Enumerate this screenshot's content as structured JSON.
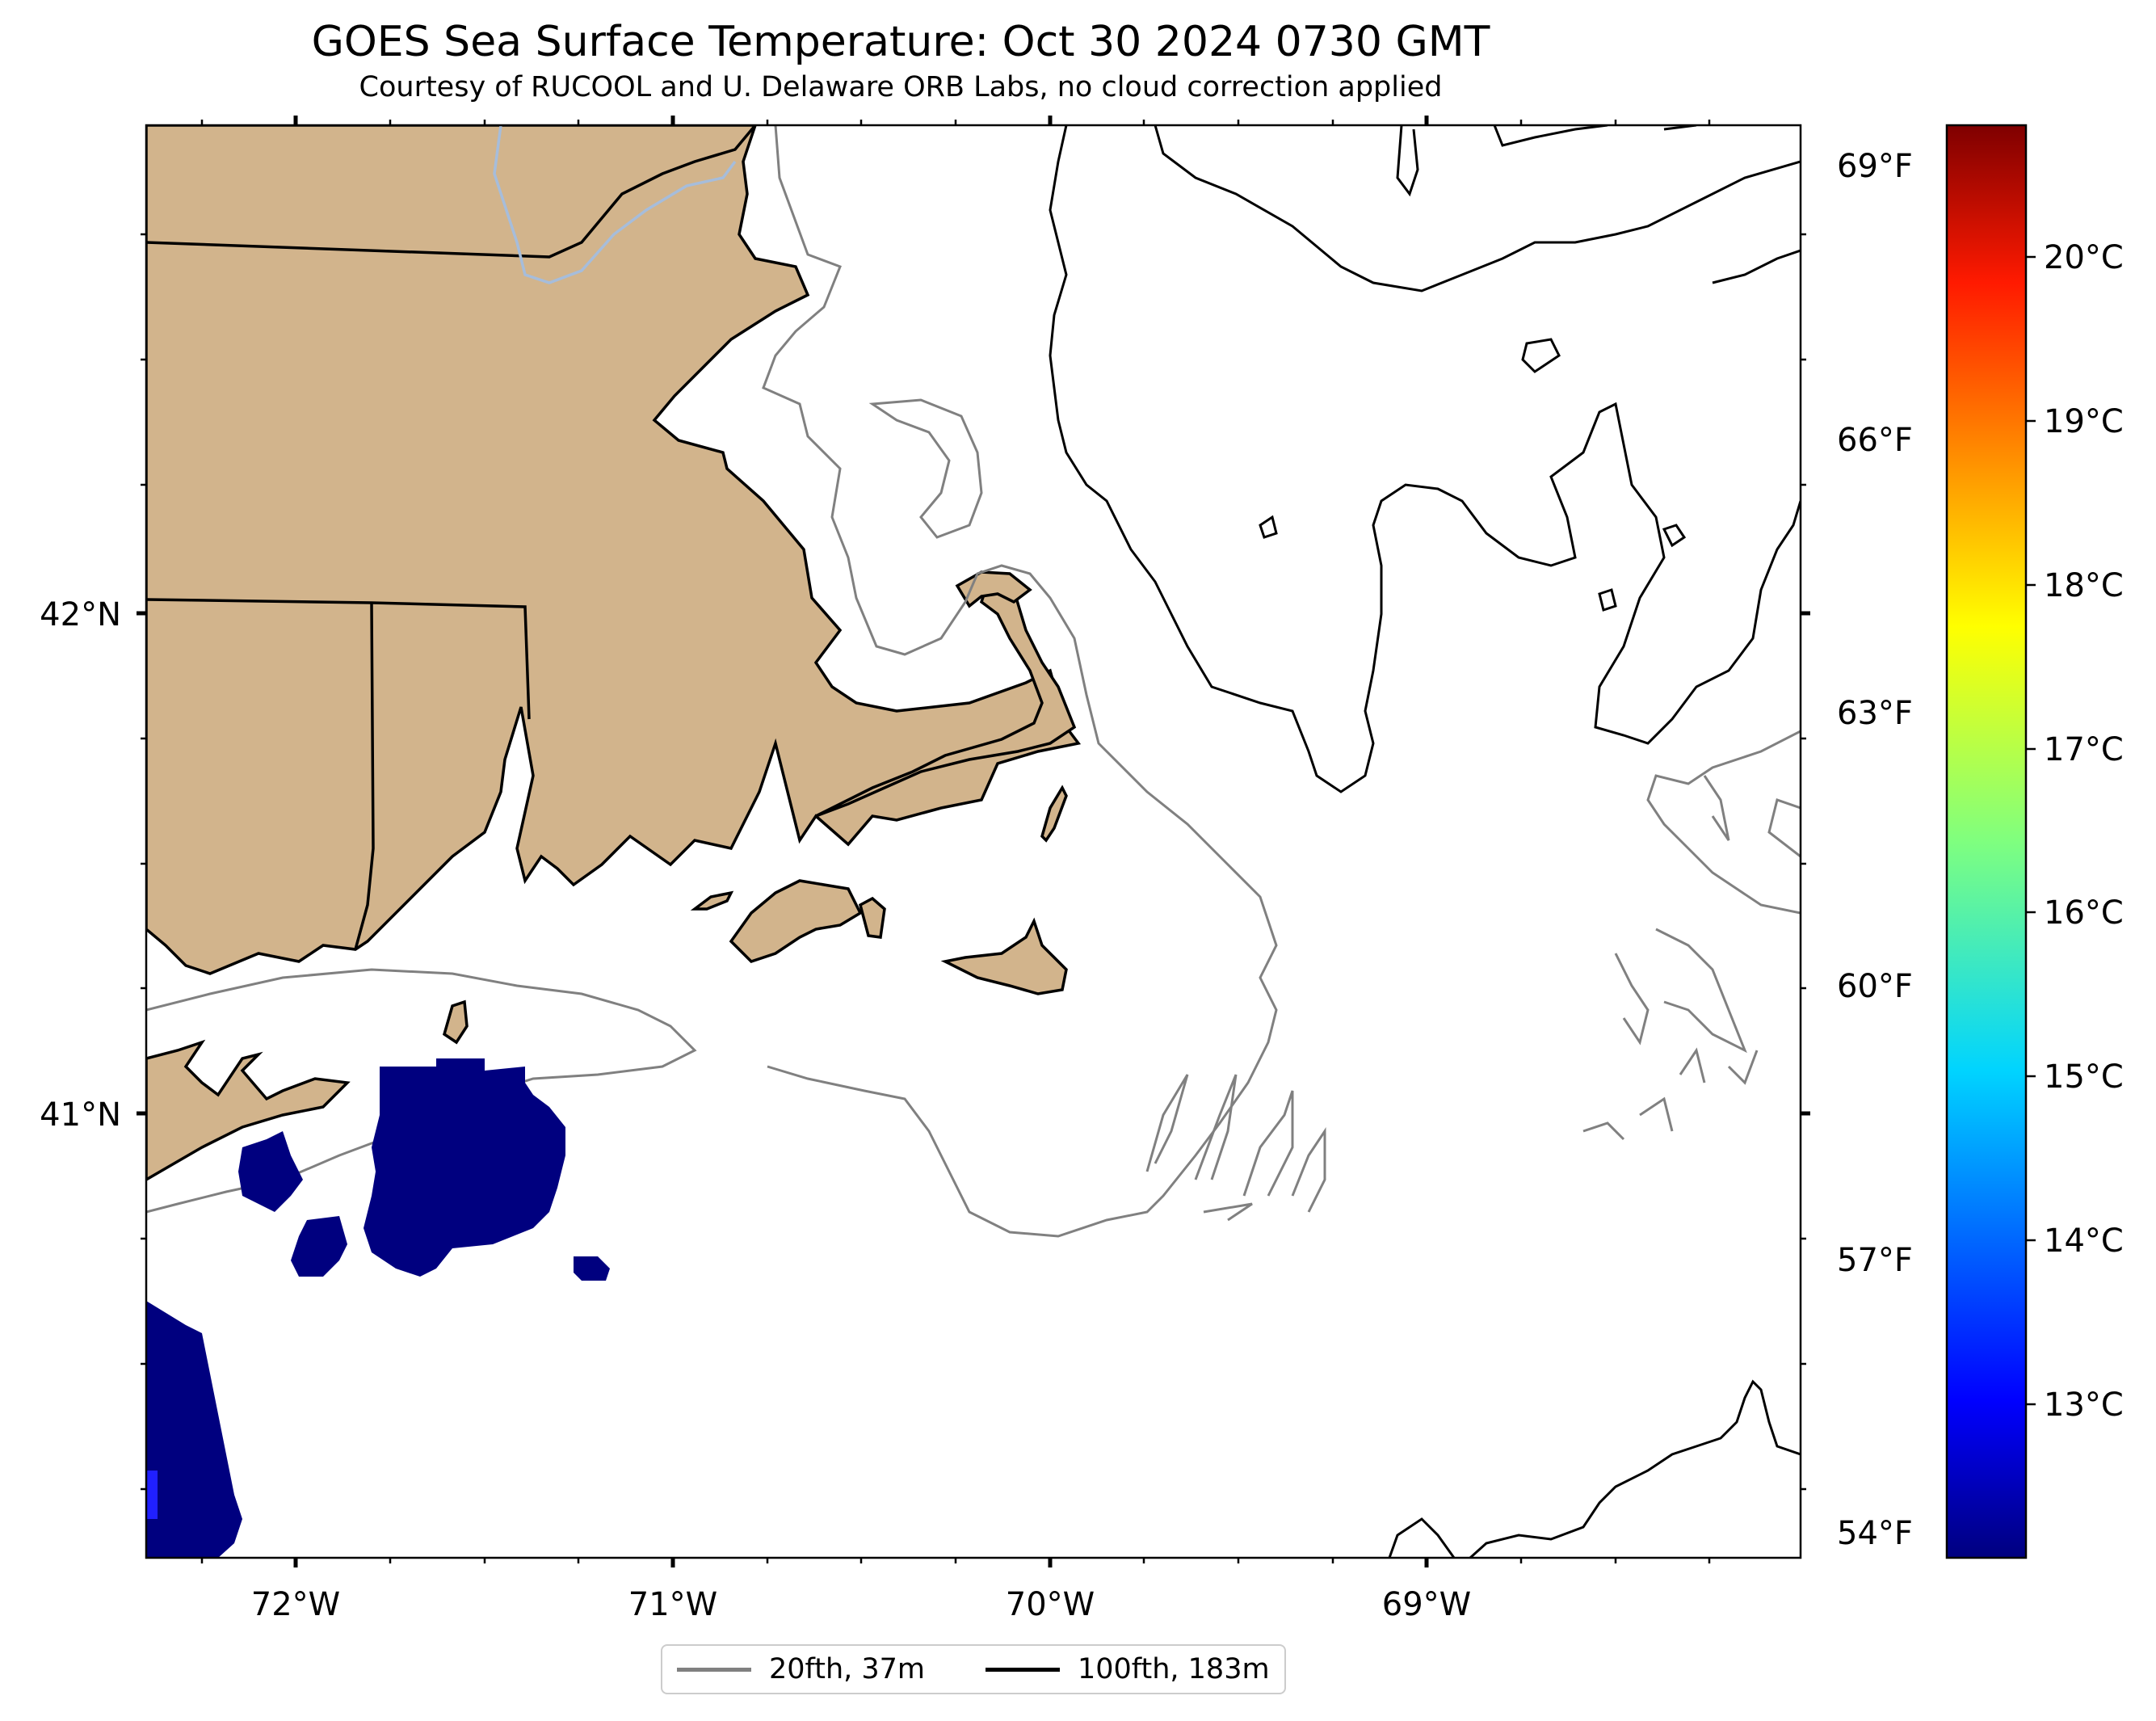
{
  "title": "GOES Sea Surface Temperature: Oct 30 2024 0730 GMT",
  "subtitle": "Courtesy of RUCOOL and U. Delaware ORB Labs, no cloud correction applied",
  "map": {
    "lon_labels": [
      "72°W",
      "71°W",
      "70°W",
      "69°W"
    ],
    "lat_labels": [
      "42°N",
      "41°N"
    ],
    "land_color": "#d2b48c",
    "sst_color_cold": "#00007f"
  },
  "colorbar": {
    "f_labels": [
      "69°F",
      "66°F",
      "63°F",
      "60°F",
      "57°F",
      "54°F"
    ],
    "c_labels": [
      "20°C",
      "19°C",
      "18°C",
      "17°C",
      "16°C",
      "15°C",
      "14°C",
      "13°C"
    ],
    "colormap": "jet",
    "colors": [
      "#00007f",
      "#0000ff",
      "#007fff",
      "#00ffff",
      "#7fff7f",
      "#ffff00",
      "#ff7f00",
      "#ff0000",
      "#7f0000"
    ]
  },
  "legend": {
    "items": [
      {
        "label": "20fth, 37m",
        "color": "#808080"
      },
      {
        "label": "100fth, 183m",
        "color": "#000000"
      }
    ]
  }
}
